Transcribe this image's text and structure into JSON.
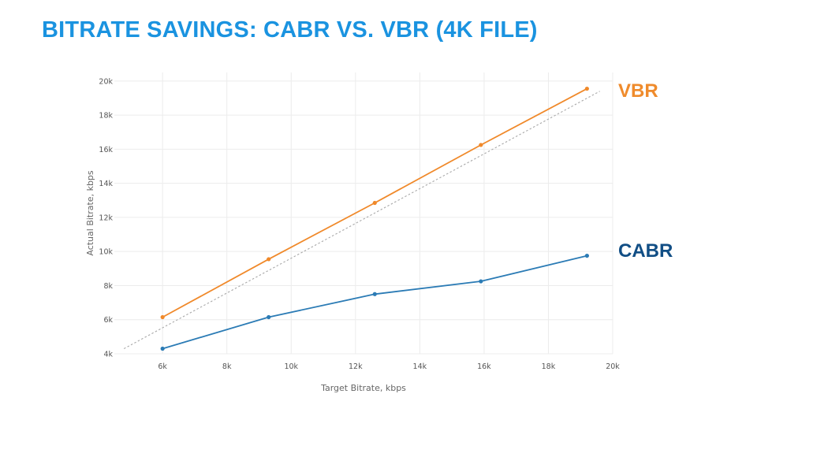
{
  "slide": {
    "title": "BITRATE SAVINGS: CABR VS. VBR (4K FILE)"
  },
  "chart_data": {
    "type": "line",
    "title": "",
    "xlabel": "Target Bitrate, kbps",
    "ylabel": "Actual Bitrate, kbps",
    "xlim": [
      4500,
      20000
    ],
    "ylim": [
      4000,
      20500
    ],
    "x_ticks": [
      6000,
      8000,
      10000,
      12000,
      14000,
      16000,
      18000,
      20000
    ],
    "x_tick_labels": [
      "6k",
      "8k",
      "10k",
      "12k",
      "14k",
      "16k",
      "18k",
      "20k"
    ],
    "y_ticks": [
      4000,
      6000,
      8000,
      10000,
      12000,
      14000,
      16000,
      18000,
      20000
    ],
    "y_tick_labels": [
      "4k",
      "6k",
      "8k",
      "10k",
      "12k",
      "14k",
      "16k",
      "18k",
      "20k"
    ],
    "grid": true,
    "series": [
      {
        "name": "VBR",
        "color": "#f0892a",
        "label_color": "#ef8b2c",
        "x": [
          6000,
          9300,
          12600,
          15900,
          19200
        ],
        "values": [
          6150,
          9550,
          12850,
          16250,
          19550
        ]
      },
      {
        "name": "CABR",
        "color": "#2b7bb5",
        "label_color": "#114e85",
        "x": [
          6000,
          9300,
          12600,
          15900,
          19200
        ],
        "values": [
          4300,
          6150,
          7500,
          8250,
          9750
        ]
      }
    ],
    "reference_line": {
      "style": "dotted",
      "color": "#a8a8a8",
      "x": [
        4800,
        19600
      ],
      "values": [
        4300,
        19400
      ]
    }
  }
}
